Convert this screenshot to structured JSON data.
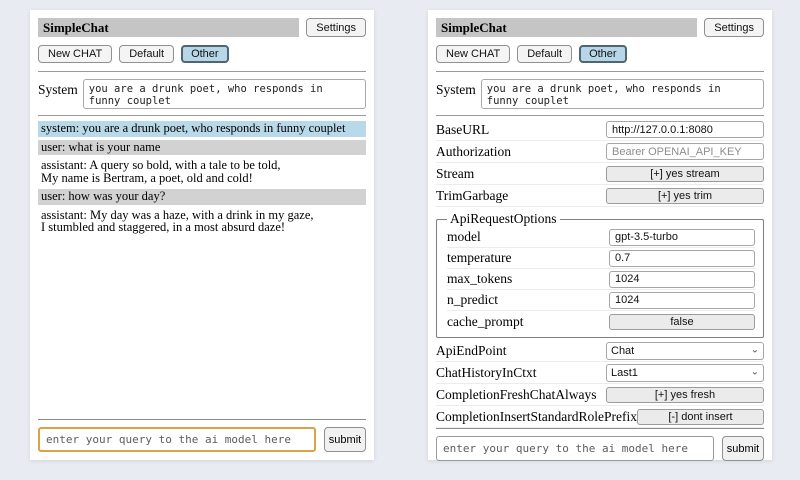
{
  "app": {
    "title": "SimpleChat",
    "settings_button": "Settings"
  },
  "sessions": {
    "new_chat": "New CHAT",
    "default": "Default",
    "other": "Other",
    "active": "Other"
  },
  "system_prompt": {
    "label": "System",
    "value": "you are a drunk poet, who responds in funny couplet"
  },
  "chat": {
    "messages": [
      {
        "role": "system",
        "text": "system: you are a drunk poet, who responds in funny couplet"
      },
      {
        "role": "user",
        "text": "user: what is your name"
      },
      {
        "role": "assistant",
        "text": "assistant: A query so bold, with a tale to be told,\nMy name is Bertram, a poet, old and cold!"
      },
      {
        "role": "user",
        "text": "user: how was your day?"
      },
      {
        "role": "assistant",
        "text": "assistant: My day was a haze, with a drink in my gaze,\nI stumbled and staggered, in a most absurd daze!"
      }
    ]
  },
  "query": {
    "placeholder": "enter your query to the ai model here",
    "submit_label": "submit"
  },
  "settings": {
    "base_url": {
      "label": "BaseURL",
      "value": "http://127.0.0.1:8080"
    },
    "authorization": {
      "label": "Authorization",
      "placeholder": "Bearer OPENAI_API_KEY"
    },
    "stream": {
      "label": "Stream",
      "value": "[+] yes stream"
    },
    "trim_garbage": {
      "label": "TrimGarbage",
      "value": "[+] yes trim"
    },
    "api_request_options": {
      "legend": "ApiRequestOptions",
      "model": {
        "label": "model",
        "value": "gpt-3.5-turbo"
      },
      "temperature": {
        "label": "temperature",
        "value": "0.7"
      },
      "max_tokens": {
        "label": "max_tokens",
        "value": "1024"
      },
      "n_predict": {
        "label": "n_predict",
        "value": "1024"
      },
      "cache_prompt": {
        "label": "cache_prompt",
        "value": "false"
      }
    },
    "api_endpoint": {
      "label": "ApiEndPoint",
      "value": "Chat"
    },
    "chat_history_in_ctxt": {
      "label": "ChatHistoryInCtxt",
      "value": "Last1"
    },
    "completion_fresh_chat_always": {
      "label": "CompletionFreshChatAlways",
      "value": "[+] yes fresh"
    },
    "completion_insert_standard_role_prefix": {
      "label": "CompletionInsertStandardRolePrefix",
      "value": "[-] dont insert"
    }
  },
  "icons": {
    "chevron_down": "⌄"
  },
  "colors": {
    "page_background": "#e9ebf2",
    "panel_background": "#ffffff",
    "titlebar_background": "#c5c5c5",
    "active_session_background": "#b7d7e8",
    "system_message_background": "#b7d9e8",
    "user_message_background": "#d2d2d2",
    "focused_input_border": "#dba249"
  }
}
